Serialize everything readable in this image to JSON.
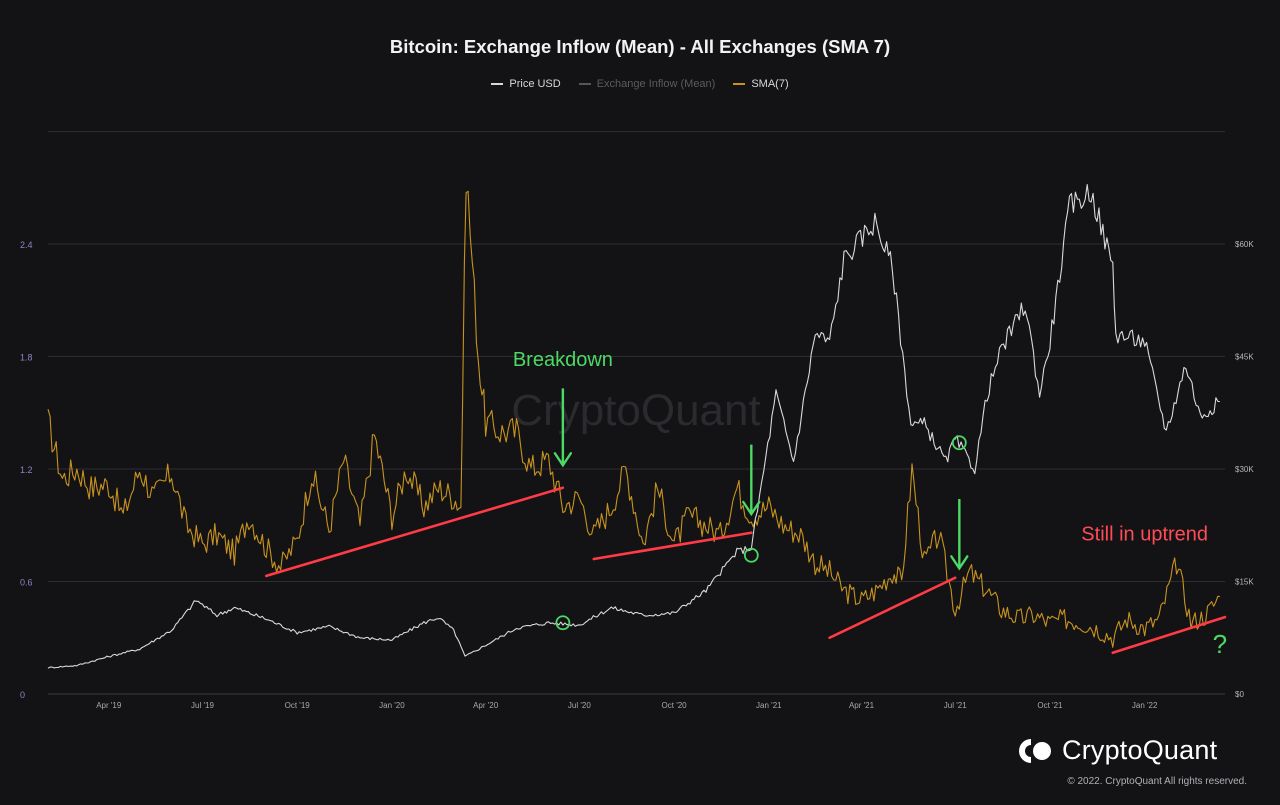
{
  "chart_data": {
    "type": "line",
    "title": "Bitcoin: Exchange Inflow (Mean) - All Exchanges (SMA 7)",
    "legend": [
      {
        "name": "Price USD",
        "color": "#d9d9d9",
        "dim": false
      },
      {
        "name": "Exchange Inflow (Mean)",
        "color": "#55555a",
        "dim": true
      },
      {
        "name": "SMA(7)",
        "color": "#c8931e",
        "dim": false
      }
    ],
    "legend_position": "top-center",
    "x_ticks": [
      "Apr '19",
      "Jul '19",
      "Oct '19",
      "Jan '20",
      "Apr '20",
      "Jul '20",
      "Oct '20",
      "Jan '21",
      "Apr '21",
      "Jul '21",
      "Oct '21",
      "Jan '22"
    ],
    "x_range": [
      "2019-02-01",
      "2022-03-20"
    ],
    "y_left": {
      "ticks": [
        "0",
        "0.6",
        "1.2",
        "1.8",
        "2.4"
      ],
      "range": [
        0,
        2.4
      ]
    },
    "y_right": {
      "ticks": [
        "$0",
        "$15K",
        "$30K",
        "$45K",
        "$60K"
      ],
      "range": [
        0,
        60000
      ]
    },
    "grid": true,
    "series": [
      {
        "name": "SMA(7)",
        "color": "#c8931e",
        "axis": "left",
        "points": [
          [
            "2019-02-01",
            1.45
          ],
          [
            "2019-02-15",
            1.15
          ],
          [
            "2019-03-01",
            1.2
          ],
          [
            "2019-03-15",
            1.1
          ],
          [
            "2019-04-01",
            1.12
          ],
          [
            "2019-04-15",
            0.95
          ],
          [
            "2019-05-01",
            1.2
          ],
          [
            "2019-05-15",
            1.05
          ],
          [
            "2019-06-01",
            1.18
          ],
          [
            "2019-06-15",
            0.9
          ],
          [
            "2019-07-01",
            0.8
          ],
          [
            "2019-07-15",
            0.85
          ],
          [
            "2019-08-01",
            0.75
          ],
          [
            "2019-08-15",
            0.95
          ],
          [
            "2019-09-01",
            0.78
          ],
          [
            "2019-09-15",
            0.68
          ],
          [
            "2019-10-01",
            0.82
          ],
          [
            "2019-10-15",
            1.18
          ],
          [
            "2019-11-01",
            0.88
          ],
          [
            "2019-11-15",
            1.25
          ],
          [
            "2019-12-01",
            0.9
          ],
          [
            "2019-12-15",
            1.38
          ],
          [
            "2020-01-01",
            0.95
          ],
          [
            "2020-01-15",
            1.2
          ],
          [
            "2020-02-01",
            1.0
          ],
          [
            "2020-02-15",
            1.1
          ],
          [
            "2020-03-01",
            1.05
          ],
          [
            "2020-03-08",
            1.0
          ],
          [
            "2020-03-13",
            2.8
          ],
          [
            "2020-03-25",
            1.8
          ],
          [
            "2020-04-01",
            1.45
          ],
          [
            "2020-04-15",
            1.4
          ],
          [
            "2020-05-01",
            1.4
          ],
          [
            "2020-05-15",
            1.2
          ],
          [
            "2020-06-01",
            1.25
          ],
          [
            "2020-06-15",
            1.0
          ],
          [
            "2020-07-01",
            1.05
          ],
          [
            "2020-07-15",
            0.85
          ],
          [
            "2020-08-01",
            1.0
          ],
          [
            "2020-08-15",
            1.2
          ],
          [
            "2020-09-01",
            0.8
          ],
          [
            "2020-09-15",
            1.1
          ],
          [
            "2020-10-01",
            0.8
          ],
          [
            "2020-10-15",
            0.95
          ],
          [
            "2020-11-01",
            0.9
          ],
          [
            "2020-11-15",
            0.85
          ],
          [
            "2020-12-01",
            1.1
          ],
          [
            "2020-12-15",
            0.95
          ],
          [
            "2021-01-01",
            1.0
          ],
          [
            "2021-01-15",
            0.9
          ],
          [
            "2021-02-01",
            0.85
          ],
          [
            "2021-02-15",
            0.7
          ],
          [
            "2021-03-01",
            0.65
          ],
          [
            "2021-03-15",
            0.55
          ],
          [
            "2021-04-01",
            0.5
          ],
          [
            "2021-04-15",
            0.55
          ],
          [
            "2021-05-01",
            0.65
          ],
          [
            "2021-05-10",
            0.6
          ],
          [
            "2021-05-20",
            1.2
          ],
          [
            "2021-06-01",
            0.7
          ],
          [
            "2021-06-15",
            0.85
          ],
          [
            "2021-07-01",
            0.45
          ],
          [
            "2021-07-15",
            0.65
          ],
          [
            "2021-08-01",
            0.55
          ],
          [
            "2021-08-15",
            0.45
          ],
          [
            "2021-09-01",
            0.4
          ],
          [
            "2021-09-15",
            0.42
          ],
          [
            "2021-10-01",
            0.38
          ],
          [
            "2021-10-15",
            0.4
          ],
          [
            "2021-11-01",
            0.38
          ],
          [
            "2021-11-15",
            0.35
          ],
          [
            "2021-12-01",
            0.3
          ],
          [
            "2021-12-15",
            0.4
          ],
          [
            "2022-01-01",
            0.35
          ],
          [
            "2022-01-15",
            0.4
          ],
          [
            "2022-02-01",
            0.7
          ],
          [
            "2022-02-15",
            0.38
          ],
          [
            "2022-03-01",
            0.42
          ],
          [
            "2022-03-15",
            0.52
          ]
        ]
      },
      {
        "name": "Price USD",
        "color": "#d9d9d9",
        "axis": "right",
        "points": [
          [
            "2019-02-01",
            3500
          ],
          [
            "2019-03-01",
            3800
          ],
          [
            "2019-04-01",
            5000
          ],
          [
            "2019-05-01",
            6000
          ],
          [
            "2019-06-01",
            8500
          ],
          [
            "2019-06-25",
            12500
          ],
          [
            "2019-07-15",
            10500
          ],
          [
            "2019-08-01",
            11500
          ],
          [
            "2019-09-01",
            10000
          ],
          [
            "2019-10-01",
            8200
          ],
          [
            "2019-11-01",
            9000
          ],
          [
            "2019-12-01",
            7500
          ],
          [
            "2020-01-01",
            7200
          ],
          [
            "2020-02-01",
            9500
          ],
          [
            "2020-02-15",
            10200
          ],
          [
            "2020-03-01",
            8500
          ],
          [
            "2020-03-12",
            5000
          ],
          [
            "2020-04-01",
            6500
          ],
          [
            "2020-05-01",
            8800
          ],
          [
            "2020-06-01",
            9500
          ],
          [
            "2020-07-01",
            9200
          ],
          [
            "2020-08-01",
            11500
          ],
          [
            "2020-09-01",
            10500
          ],
          [
            "2020-10-01",
            10800
          ],
          [
            "2020-11-01",
            13800
          ],
          [
            "2020-12-01",
            19000
          ],
          [
            "2020-12-15",
            19500
          ],
          [
            "2021-01-08",
            40000
          ],
          [
            "2021-01-25",
            31000
          ],
          [
            "2021-02-15",
            48000
          ],
          [
            "2021-03-01",
            47000
          ],
          [
            "2021-03-15",
            58000
          ],
          [
            "2021-04-14",
            63000
          ],
          [
            "2021-05-01",
            57000
          ],
          [
            "2021-05-19",
            36000
          ],
          [
            "2021-06-01",
            36000
          ],
          [
            "2021-06-22",
            31000
          ],
          [
            "2021-07-01",
            34000
          ],
          [
            "2021-07-20",
            30000
          ],
          [
            "2021-08-01",
            40000
          ],
          [
            "2021-08-15",
            46000
          ],
          [
            "2021-09-07",
            52000
          ],
          [
            "2021-09-21",
            40000
          ],
          [
            "2021-10-01",
            47000
          ],
          [
            "2021-10-20",
            65000
          ],
          [
            "2021-11-10",
            67000
          ],
          [
            "2021-12-01",
            57000
          ],
          [
            "2021-12-04",
            48000
          ],
          [
            "2022-01-01",
            47000
          ],
          [
            "2022-01-22",
            35000
          ],
          [
            "2022-02-10",
            44000
          ],
          [
            "2022-02-24",
            37000
          ],
          [
            "2022-03-15",
            39000
          ]
        ]
      }
    ],
    "annotations": {
      "labels": [
        {
          "text": "Breakdown",
          "color": "#4cd964",
          "date": "2020-06-15",
          "value": 1.75
        },
        {
          "text": "Still in uptrend",
          "color": "#ff4b55",
          "date": "2022-01-01",
          "value": 0.82
        },
        {
          "text": "?",
          "color": "#4cd964",
          "date": "2022-03-15",
          "value": 0.22
        }
      ],
      "trendlines": [
        {
          "color": "#ff3b45",
          "from": [
            "2019-09-01",
            0.63
          ],
          "to": [
            "2020-06-15",
            1.1
          ]
        },
        {
          "color": "#ff3b45",
          "from": [
            "2020-07-15",
            0.72
          ],
          "to": [
            "2020-12-15",
            0.86
          ]
        },
        {
          "color": "#ff3b45",
          "from": [
            "2021-03-01",
            0.3
          ],
          "to": [
            "2021-07-01",
            0.62
          ]
        },
        {
          "color": "#ff3b45",
          "from": [
            "2021-12-01",
            0.22
          ],
          "to": [
            "2022-03-20",
            0.41
          ]
        }
      ],
      "arrows": [
        {
          "color": "#4cd964",
          "date": "2020-06-15",
          "from": 1.63,
          "to": 1.22
        },
        {
          "color": "#4cd964",
          "date": "2020-12-15",
          "from": 1.33,
          "to": 0.96
        },
        {
          "color": "#4cd964",
          "date": "2021-07-05",
          "from": 1.04,
          "to": 0.67
        }
      ],
      "circles": [
        {
          "color": "#4cd964",
          "date": "2020-06-15",
          "axis": "right",
          "value": 9500
        },
        {
          "color": "#4cd964",
          "date": "2020-12-15",
          "axis": "right",
          "value": 18500
        },
        {
          "color": "#4cd964",
          "date": "2021-07-05",
          "axis": "right",
          "value": 33500
        }
      ]
    },
    "watermark": "CryptoQuant"
  },
  "brand": {
    "name": "CryptoQuant",
    "copyright": "© 2022. CryptoQuant All rights reserved."
  }
}
